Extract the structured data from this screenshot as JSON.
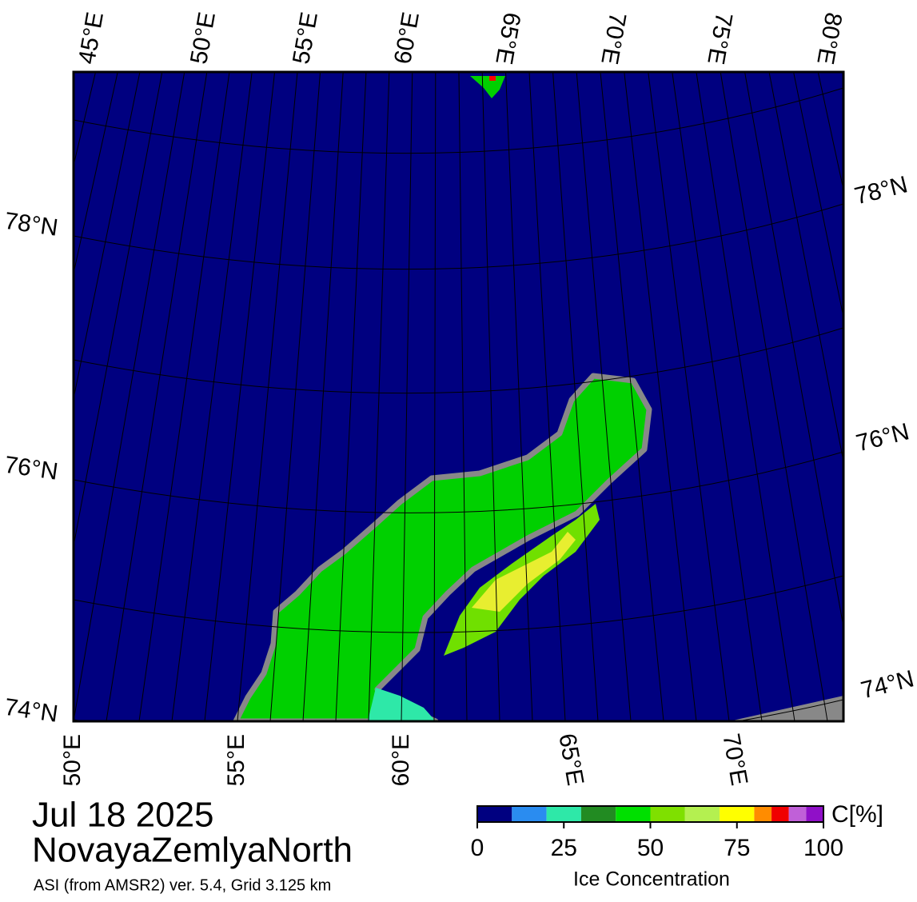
{
  "map": {
    "top_lon_labels": [
      "45°E",
      "50°E",
      "55°E",
      "60°E",
      "65°E",
      "70°E",
      "75°E",
      "80°E"
    ],
    "bottom_lon_labels": [
      "50°E",
      "55°E",
      "60°E",
      "65°E",
      "70°E"
    ],
    "left_lat_labels": [
      "78°N",
      "76°N",
      "74°N"
    ],
    "right_lat_labels": [
      "78°N",
      "76°N",
      "74°N"
    ],
    "date": "Jul 18 2025",
    "region": "NovayaZemlyaNorth",
    "subtitle": "ASI (from AMSR2) ver. 5.4,  Grid 3.125 km",
    "colorbar": {
      "unit": "C[%]",
      "label": "Ice Concentration",
      "range": [
        0,
        100
      ],
      "ticks": [
        0,
        25,
        50,
        75,
        100
      ],
      "bounds": [
        0,
        10,
        20,
        30,
        40,
        50,
        60,
        70,
        80,
        85,
        90,
        95,
        100
      ],
      "colors": [
        "#000080",
        "#2a8cf0",
        "#2ee8a8",
        "#228b22",
        "#00e000",
        "#7fe000",
        "#b4f050",
        "#ffff00",
        "#ff8c00",
        "#f00000",
        "#c060d8",
        "#9010c8"
      ]
    }
  }
}
